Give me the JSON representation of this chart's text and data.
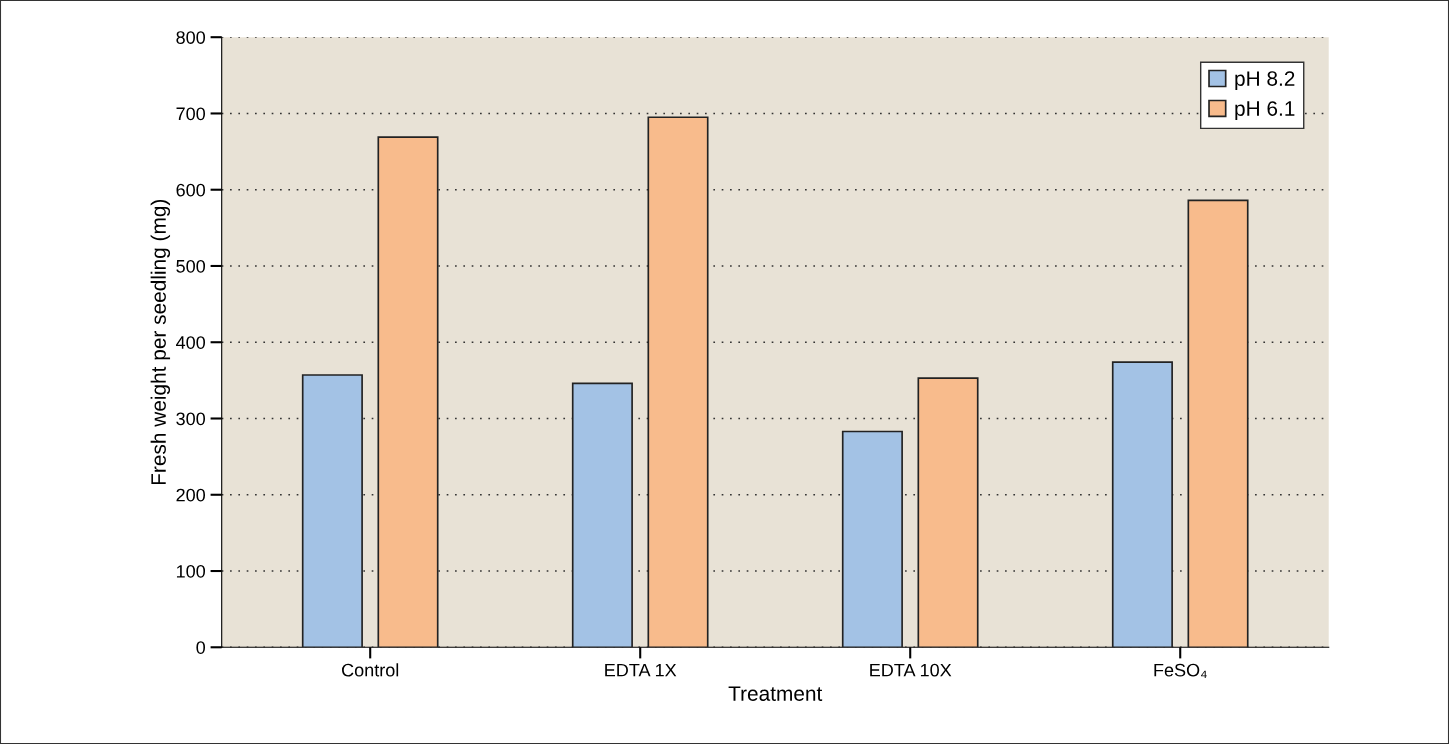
{
  "chart_data": {
    "type": "bar",
    "xlabel": "Treatment",
    "ylabel": "Fresh weight per seedling (mg)",
    "categories": [
      "Control",
      "EDTA 1X",
      "EDTA 10X",
      "FeSO₄"
    ],
    "series": [
      {
        "name": "pH 8.2",
        "color": "#a3c2e5",
        "values": [
          357,
          346,
          283,
          374
        ]
      },
      {
        "name": "pH 6.1",
        "color": "#f8bb8c",
        "values": [
          669,
          695,
          353,
          586
        ]
      }
    ],
    "ylim": [
      0,
      800
    ],
    "yticks": [
      0,
      100,
      200,
      300,
      400,
      500,
      600,
      700,
      800
    ],
    "grid": "y",
    "legend": "top right"
  }
}
